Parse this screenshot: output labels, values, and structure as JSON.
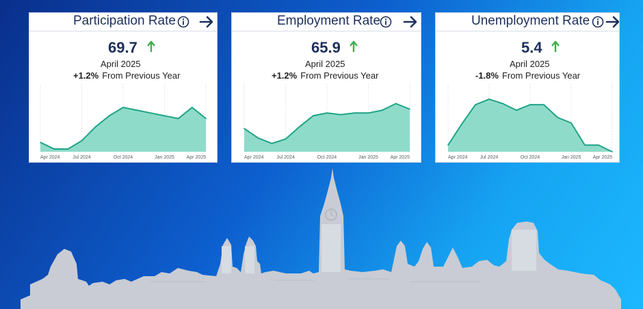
{
  "cards": [
    {
      "title": "Participation Rate",
      "value": "69.7",
      "date": "April 2025",
      "change": "+1.2%",
      "change_text": "From Previous Year",
      "trend": "up"
    },
    {
      "title": "Employment Rate",
      "value": "65.9",
      "date": "April 2025",
      "change": "+1.2%",
      "change_text": "From Previous Year",
      "trend": "up"
    },
    {
      "title": "Unemployment Rate",
      "value": "5.4",
      "date": "April 2025",
      "change": "-1.8%",
      "change_text": "From Previous Year",
      "trend": "up"
    }
  ],
  "colors": {
    "area_fill": "#8fdbc9",
    "area_line": "#1fa386",
    "title_text": "#1d2f5c",
    "trend_up": "#3fae49"
  },
  "chart_data": [
    {
      "type": "area",
      "x": [
        "Apr 2024",
        "May 2024",
        "Jun 2024",
        "Jul 2024",
        "Aug 2024",
        "Sep 2024",
        "Oct 2024",
        "Nov 2024",
        "Dec 2024",
        "Jan 2025",
        "Feb 2025",
        "Mar 2025",
        "Apr 2025"
      ],
      "x_tick_labels": [
        "Apr 2024",
        "Jul 2024",
        "Oct 2024",
        "Jan 2025",
        "Apr 2025"
      ],
      "values": [
        0.17,
        0.05,
        0.05,
        0.2,
        0.45,
        0.65,
        0.8,
        0.75,
        0.7,
        0.65,
        0.6,
        0.8,
        0.6
      ],
      "value_scale": "relative (0 = chart bottom, 1 = chart top); the chart prints no y-axis values",
      "grid": "vertical dotted gridlines at quarterly ticks"
    },
    {
      "type": "area",
      "x": [
        "Apr 2024",
        "May 2024",
        "Jun 2024",
        "Jul 2024",
        "Aug 2024",
        "Sep 2024",
        "Oct 2024",
        "Nov 2024",
        "Dec 2024",
        "Jan 2025",
        "Feb 2025",
        "Mar 2025",
        "Apr 2025"
      ],
      "x_tick_labels": [
        "Apr 2024",
        "Jul 2024",
        "Oct 2024",
        "Jan 2025",
        "Apr 2025"
      ],
      "values": [
        0.42,
        0.25,
        0.15,
        0.23,
        0.45,
        0.65,
        0.7,
        0.67,
        0.7,
        0.7,
        0.75,
        0.87,
        0.77
      ],
      "value_scale": "relative (0 = chart bottom, 1 = chart top); the chart prints no y-axis values",
      "grid": "vertical dotted gridlines at quarterly ticks"
    },
    {
      "type": "area",
      "x": [
        "Apr 2024",
        "May 2024",
        "Jun 2024",
        "Jul 2024",
        "Aug 2024",
        "Sep 2024",
        "Oct 2024",
        "Nov 2024",
        "Dec 2024",
        "Jan 2025",
        "Feb 2025",
        "Mar 2025",
        "Apr 2025"
      ],
      "x_tick_labels": [
        "Apr 2024",
        "Jul 2024",
        "Oct 2024",
        "Jan 2025",
        "Apr 2025"
      ],
      "values": [
        0.12,
        0.5,
        0.85,
        0.95,
        0.87,
        0.75,
        0.85,
        0.85,
        0.62,
        0.52,
        0.12,
        0.12,
        0.0
      ],
      "value_scale": "relative (0 = chart bottom, 1 = chart top); the chart prints no y-axis values",
      "grid": "vertical dotted gridlines at quarterly ticks"
    }
  ]
}
